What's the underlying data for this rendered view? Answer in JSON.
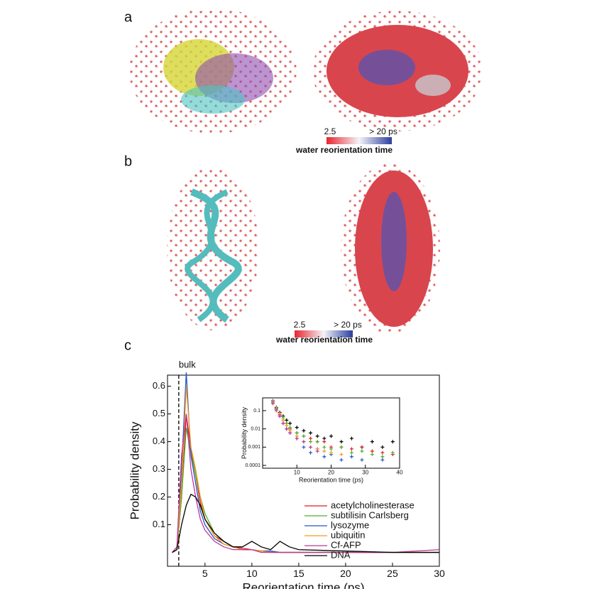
{
  "panels": {
    "a": {
      "label": "a",
      "colorbar": {
        "min_label": "2.5",
        "max_label": "> 20 ps",
        "title": "water reorientation time"
      }
    },
    "b": {
      "label": "b",
      "colorbar": {
        "min_label": "2.5",
        "max_label": "> 20 ps",
        "title": "water reorientation time"
      }
    },
    "c": {
      "label": "c"
    }
  },
  "chart_data": [
    {
      "type": "line",
      "x_label": "Reorientation time (ps)",
      "y_label": "Probability density",
      "annotations": [
        {
          "text": "bulk",
          "x": 2.2
        }
      ],
      "x": [
        1.5,
        2,
        2.5,
        3,
        3.5,
        4,
        4.5,
        5,
        6,
        7,
        8,
        9,
        10,
        11,
        12,
        13,
        14,
        15,
        20,
        25,
        30
      ],
      "xlim": [
        1,
        30
      ],
      "xticks": [
        5,
        10,
        15,
        20,
        25,
        30
      ],
      "ylim": [
        -0.05,
        0.64
      ],
      "yticks": [
        0.1,
        0.2,
        0.3,
        0.4,
        0.5,
        0.6
      ],
      "legend": "lower right",
      "series": [
        {
          "name": "acetylcholinesterase",
          "color": "#e41a1c",
          "values": [
            0,
            0.01,
            0.2,
            0.5,
            0.37,
            0.28,
            0.18,
            0.12,
            0.06,
            0.04,
            0.02,
            0.015,
            0.01,
            0.005,
            0.005,
            0,
            0,
            0,
            0,
            0,
            0
          ]
        },
        {
          "name": "subtilisin Carlsberg",
          "color": "#4daf2a",
          "values": [
            0,
            0.01,
            0.2,
            0.45,
            0.36,
            0.28,
            0.2,
            0.14,
            0.07,
            0.04,
            0.02,
            0.01,
            0.01,
            0.005,
            0,
            0,
            0,
            0,
            0,
            0,
            0
          ]
        },
        {
          "name": "lysozyme",
          "color": "#2355c8",
          "values": [
            0,
            0.01,
            0.3,
            0.65,
            0.35,
            0.25,
            0.15,
            0.1,
            0.05,
            0.03,
            0.02,
            0.01,
            0.01,
            0.005,
            0.005,
            0,
            0,
            0,
            0,
            0,
            0
          ]
        },
        {
          "name": "ubiquitin",
          "color": "#f39a1d",
          "values": [
            0,
            0.01,
            0.25,
            0.6,
            0.38,
            0.3,
            0.2,
            0.12,
            0.06,
            0.03,
            0.02,
            0.01,
            0.01,
            0.005,
            0,
            0,
            0,
            0,
            0,
            0,
            0
          ]
        },
        {
          "name": "Cf-AFP",
          "color": "#c0359c",
          "values": [
            0,
            0.02,
            0.35,
            0.5,
            0.3,
            0.2,
            0.12,
            0.08,
            0.04,
            0.02,
            0.01,
            0.01,
            0.01,
            0,
            0,
            0,
            0,
            0,
            0,
            0,
            0.01
          ]
        },
        {
          "name": "DNA",
          "color": "#000000",
          "values": [
            0,
            0.01,
            0.1,
            0.17,
            0.21,
            0.2,
            0.17,
            0.12,
            0.07,
            0.04,
            0.02,
            0.02,
            0.04,
            0.02,
            0.01,
            0.04,
            0.02,
            0.01,
            0.005,
            0,
            0
          ]
        }
      ]
    },
    {
      "type": "scatter",
      "x_label": "Reorientation time (ps)",
      "y_label": "Probability density",
      "log_y": true,
      "x": [
        3,
        4,
        5,
        6,
        7,
        8,
        10,
        12,
        14,
        16,
        18,
        20,
        23,
        26,
        29,
        32,
        35,
        38
      ],
      "xlim": [
        0,
        40
      ],
      "xticks": [
        10,
        20,
        30,
        40
      ],
      "ylim": [
        7e-05,
        0.5
      ],
      "yticks": [
        0.0001,
        0.001,
        0.01,
        0.1
      ],
      "series": [
        {
          "color": "#000000",
          "values": [
            0.3,
            0.15,
            0.08,
            0.05,
            0.03,
            0.02,
            0.012,
            0.008,
            0.006,
            0.004,
            0.003,
            0.004,
            0.002,
            0.003,
            0.001,
            0.002,
            0.001,
            0.002
          ]
        },
        {
          "color": "#e41a1c",
          "values": [
            0.3,
            0.12,
            0.06,
            0.03,
            0.02,
            0.01,
            0.006,
            0.004,
            0.003,
            0.002,
            0.002,
            0.001,
            0.001,
            0.0008,
            0.001,
            0.0006,
            0.0005,
            0.0004
          ]
        },
        {
          "color": "#4daf2a",
          "values": [
            0.25,
            0.13,
            0.07,
            0.04,
            0.02,
            0.012,
            0.006,
            0.004,
            0.002,
            0.002,
            0.001,
            0.0008,
            0.001,
            0.0005,
            0.0006,
            0.0004,
            0.0003,
            0.0005
          ]
        },
        {
          "color": "#2355c8",
          "values": [
            0.35,
            0.12,
            0.05,
            0.02,
            0.01,
            0.006,
            0.003,
            0.001,
            0.0005,
            0.0008,
            0.0003,
            0.0004,
            0.0002,
            0.0003,
            0.0002,
            null,
            0.0002,
            null
          ]
        },
        {
          "color": "#f39a1d",
          "values": [
            0.3,
            0.14,
            0.07,
            0.03,
            0.015,
            0.008,
            0.004,
            0.002,
            0.001,
            0.0008,
            0.0006,
            0.0005,
            0.0004,
            null,
            null,
            null,
            null,
            null
          ]
        },
        {
          "color": "#c0359c",
          "values": [
            0.25,
            0.1,
            0.05,
            0.02,
            0.01,
            0.006,
            0.003,
            0.002,
            0.001,
            0.0006,
            null,
            null,
            null,
            null,
            null,
            null,
            null,
            null
          ]
        }
      ]
    }
  ]
}
